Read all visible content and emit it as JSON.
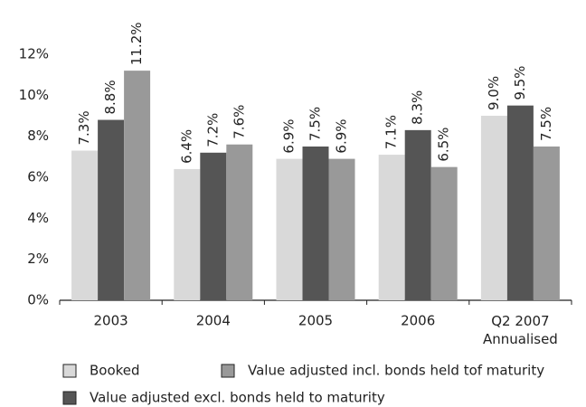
{
  "chart_data": {
    "type": "bar",
    "categories": [
      "2003",
      "2004",
      "2005",
      "2006",
      "Q2 2007\nAnnualised"
    ],
    "series": [
      {
        "name": "Booked",
        "color": "#d9d9d9",
        "values": [
          7.3,
          6.4,
          6.9,
          7.1,
          9.0
        ],
        "value_labels": [
          "7.3%",
          "6.4%",
          "6.9%",
          "7.1%",
          "9.0%"
        ]
      },
      {
        "name": "Value adjusted excl. bonds held to maturity",
        "color": "#555555",
        "values": [
          8.8,
          7.2,
          7.5,
          8.3,
          9.5
        ],
        "value_labels": [
          "8.8%",
          "7.2%",
          "7.5%",
          "8.3%",
          "9.5%"
        ]
      },
      {
        "name": "Value adjusted incl. bonds held tof maturity",
        "color": "#999999",
        "values": [
          11.2,
          7.6,
          6.9,
          6.5,
          7.5
        ],
        "value_labels": [
          "11.2%",
          "7.6%",
          "6.9%",
          "6.5%",
          "7.5%"
        ]
      }
    ],
    "ylim": [
      0,
      12
    ],
    "yticks": [
      {
        "value": 0,
        "label": "0%"
      },
      {
        "value": 2,
        "label": "2%"
      },
      {
        "value": 4,
        "label": "4%"
      },
      {
        "value": 6,
        "label": "6%"
      },
      {
        "value": 8,
        "label": "8%"
      },
      {
        "value": 10,
        "label": "10%"
      },
      {
        "value": 12,
        "label": "12%"
      }
    ],
    "grid": false
  }
}
